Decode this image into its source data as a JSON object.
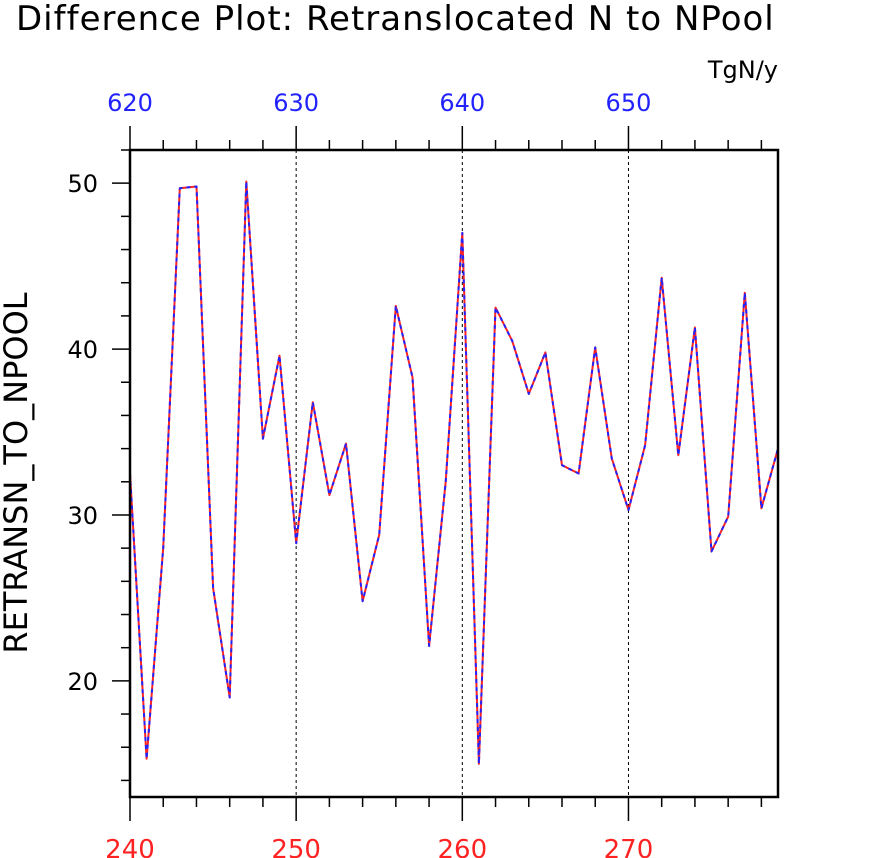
{
  "title": "Difference Plot: Retranslocated N to NPool",
  "units": "TgN/y",
  "chart_data": {
    "type": "line",
    "title": "Difference Plot: Retranslocated N to NPool",
    "ylabel": "RETRANSN_TO_NPOOL",
    "units": "TgN/y",
    "xlim": [
      240,
      279
    ],
    "ylim": [
      13,
      52
    ],
    "x_ticks_bottom": [
      240,
      250,
      260,
      270
    ],
    "x_ticks_top": [
      620,
      630,
      640,
      650
    ],
    "y_ticks": [
      20,
      30,
      40,
      50
    ],
    "grid": "vertical dashed lines at major x ticks",
    "colors": {
      "series1": "#ff2222",
      "series2": "#2222ff",
      "bottom_ticks": "#ff2222",
      "top_ticks": "#2222ff"
    },
    "x": [
      240,
      241,
      242,
      243,
      244,
      245,
      246,
      247,
      248,
      249,
      250,
      251,
      252,
      253,
      254,
      255,
      256,
      257,
      258,
      259,
      260,
      261,
      262,
      263,
      264,
      265,
      266,
      267,
      268,
      269,
      270,
      271,
      272,
      273,
      274,
      275,
      276,
      277,
      278,
      279
    ],
    "series": [
      {
        "values": [
          32.5,
          15.3,
          28.0,
          49.7,
          49.8,
          25.6,
          19.0,
          50.1,
          34.6,
          39.6,
          28.3,
          36.8,
          31.2,
          34.3,
          24.8,
          28.8,
          42.6,
          38.3,
          22.1,
          32.0,
          47.0,
          15.0,
          42.5,
          40.5,
          37.3,
          39.8,
          33.0,
          32.5,
          40.1,
          33.4,
          30.3,
          34.2,
          44.3,
          33.6,
          41.3,
          27.8,
          29.9,
          43.4,
          30.4,
          34.0
        ]
      },
      {
        "values": [
          32.5,
          15.3,
          28.0,
          49.7,
          49.8,
          25.6,
          19.0,
          50.1,
          34.6,
          39.6,
          28.3,
          36.8,
          31.2,
          34.3,
          24.8,
          28.8,
          42.6,
          38.3,
          22.1,
          32.0,
          47.0,
          15.0,
          42.5,
          40.5,
          37.3,
          39.8,
          33.0,
          32.5,
          40.1,
          33.4,
          30.3,
          34.2,
          44.3,
          33.6,
          41.3,
          27.8,
          29.9,
          43.4,
          30.4,
          34.0
        ]
      }
    ]
  }
}
